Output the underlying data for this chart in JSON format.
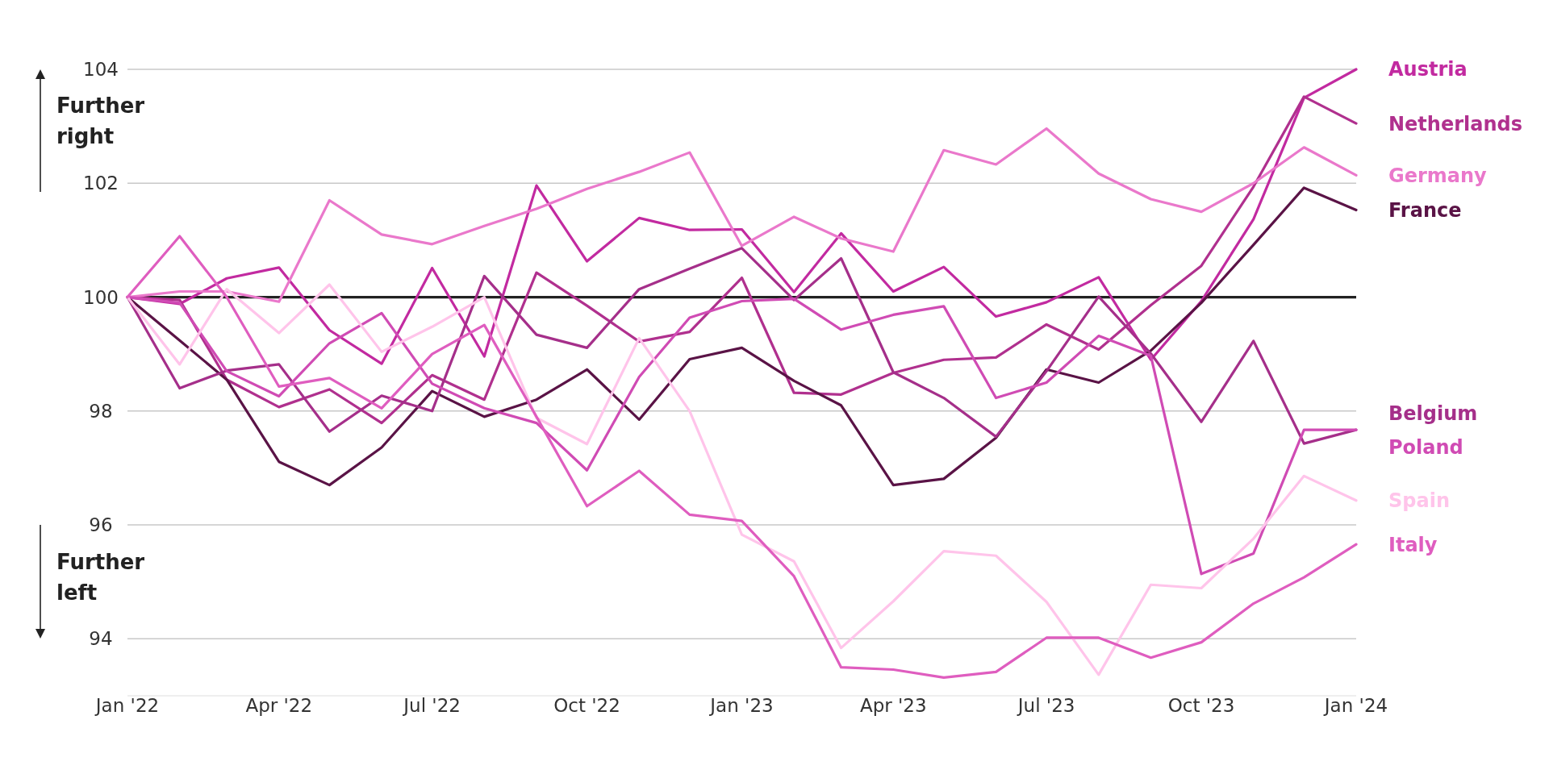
{
  "chart_data": {
    "type": "line",
    "x": [
      "2022-01",
      "2022-02",
      "2022-03",
      "2022-04",
      "2022-05",
      "2022-06",
      "2022-07",
      "2022-08",
      "2022-09",
      "2022-10",
      "2022-11",
      "2022-12",
      "2023-01",
      "2023-02",
      "2023-03",
      "2023-04",
      "2023-05",
      "2023-06",
      "2023-07",
      "2023-08",
      "2023-09",
      "2023-10",
      "2023-11",
      "2023-12",
      "2024-01"
    ],
    "series": [
      {
        "name": "Austria",
        "color": "#c22aa0",
        "values": [
          100,
          99.88,
          100.33,
          100.52,
          99.42,
          98.83,
          100.51,
          98.96,
          101.96,
          100.63,
          101.39,
          101.18,
          101.19,
          100.09,
          101.12,
          100.1,
          100.53,
          99.66,
          99.91,
          100.35,
          98.9,
          99.93,
          101.37,
          103.5,
          104.0
        ]
      },
      {
        "name": "Netherlands",
        "color": "#b0308e",
        "values": [
          100,
          99.95,
          98.55,
          98.07,
          98.38,
          97.79,
          98.63,
          98.2,
          100.43,
          99.85,
          99.22,
          99.39,
          100.34,
          98.32,
          98.29,
          98.67,
          98.9,
          98.94,
          99.52,
          99.08,
          99.86,
          100.55,
          101.94,
          103.52,
          103.05
        ]
      },
      {
        "name": "Germany",
        "color": "#ea78cb",
        "values": [
          100,
          100.1,
          100.1,
          99.92,
          101.7,
          101.1,
          100.93,
          101.25,
          101.55,
          101.9,
          102.2,
          102.54,
          100.9,
          101.41,
          101.03,
          100.8,
          102.58,
          102.33,
          102.96,
          102.17,
          101.72,
          101.5,
          102.0,
          102.63,
          102.14
        ]
      },
      {
        "name": "France",
        "color": "#5a1346",
        "values": [
          100,
          99.24,
          98.55,
          97.11,
          96.7,
          97.36,
          98.35,
          97.9,
          98.2,
          98.73,
          97.85,
          98.91,
          99.11,
          98.53,
          98.1,
          96.7,
          96.81,
          97.53,
          98.73,
          98.5,
          99.06,
          99.9,
          100.92,
          101.92,
          101.53
        ]
      },
      {
        "name": "Belgium",
        "color": "#a52f8a",
        "values": [
          100,
          98.4,
          98.71,
          98.82,
          97.64,
          98.27,
          98.0,
          100.37,
          99.34,
          99.11,
          100.14,
          100.5,
          100.86,
          99.95,
          100.68,
          98.68,
          98.23,
          97.55,
          98.7,
          100.01,
          99.01,
          97.81,
          99.23,
          97.43,
          97.67
        ]
      },
      {
        "name": "Poland",
        "color": "#d04bb4",
        "values": [
          100,
          99.9,
          98.7,
          98.26,
          99.19,
          99.72,
          98.48,
          98.05,
          97.79,
          96.96,
          98.6,
          99.64,
          99.93,
          99.97,
          99.43,
          99.69,
          99.84,
          98.23,
          98.5,
          99.32,
          98.97,
          95.14,
          95.5,
          97.67,
          97.67
        ]
      },
      {
        "name": "Spain",
        "color": "#ffc4ea",
        "values": [
          100,
          98.82,
          100.14,
          99.37,
          100.22,
          99.04,
          99.48,
          100.0,
          97.88,
          97.42,
          99.28,
          98.0,
          95.83,
          95.36,
          93.84,
          94.66,
          95.54,
          95.46,
          94.65,
          93.37,
          94.95,
          94.89,
          95.76,
          96.86,
          96.43
        ]
      },
      {
        "name": "Italy",
        "color": "#df5dbf",
        "values": [
          100,
          101.07,
          100.0,
          98.43,
          98.58,
          98.05,
          99.0,
          99.51,
          97.9,
          96.33,
          96.95,
          96.18,
          96.07,
          95.1,
          93.5,
          93.46,
          93.32,
          93.42,
          94.02,
          94.02,
          93.67,
          93.94,
          94.62,
          95.08,
          95.66
        ]
      }
    ],
    "xlim": [
      "2022-01",
      "2024-01"
    ],
    "xticks": [
      {
        "value": "2022-01",
        "label": "Jan '22"
      },
      {
        "value": "2022-04",
        "label": "Apr '22"
      },
      {
        "value": "2022-07",
        "label": "Jul '22"
      },
      {
        "value": "2022-10",
        "label": "Oct '22"
      },
      {
        "value": "2023-01",
        "label": "Jan '23"
      },
      {
        "value": "2023-04",
        "label": "Apr '23"
      },
      {
        "value": "2023-07",
        "label": "Jul '23"
      },
      {
        "value": "2023-10",
        "label": "Oct '23"
      },
      {
        "value": "2024-01",
        "label": "Jan '24"
      }
    ],
    "ylim": [
      93,
      104
    ],
    "yticks": [
      94,
      96,
      98,
      100,
      102,
      104
    ],
    "grid": "y",
    "legend": false,
    "line_style": "solid",
    "ref_lines": [
      {
        "axis": "y",
        "value": 100,
        "color": "#222222"
      }
    ],
    "annotations": [
      "Further right",
      "Further left"
    ]
  }
}
